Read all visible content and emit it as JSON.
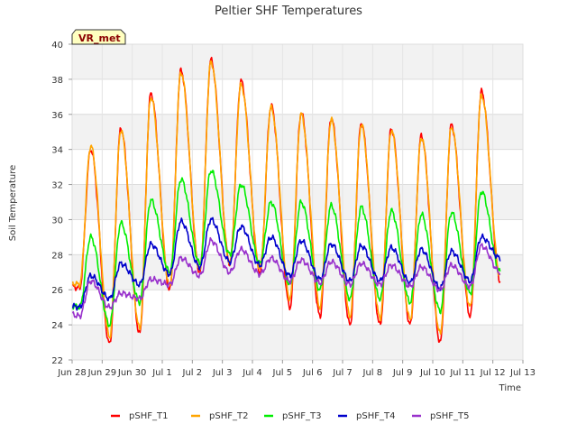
{
  "chart_data": {
    "type": "line",
    "title": "Peltier SHF Temperatures",
    "badge": "VR_met",
    "xlabel": "Time",
    "ylabel": "Soil Temperature",
    "ylim": [
      22,
      40
    ],
    "yticks": [
      22,
      24,
      26,
      28,
      30,
      32,
      34,
      36,
      38,
      40
    ],
    "xlim_days": [
      0,
      15
    ],
    "xticks": [
      {
        "day": 0,
        "label": "Jun 28"
      },
      {
        "day": 1,
        "label": "Jun 29"
      },
      {
        "day": 2,
        "label": "Jun 30"
      },
      {
        "day": 3,
        "label": "Jul 1"
      },
      {
        "day": 4,
        "label": "Jul 2"
      },
      {
        "day": 5,
        "label": "Jul 3"
      },
      {
        "day": 6,
        "label": "Jul 4"
      },
      {
        "day": 7,
        "label": "Jul 5"
      },
      {
        "day": 8,
        "label": "Jul 6"
      },
      {
        "day": 9,
        "label": "Jul 7"
      },
      {
        "day": 10,
        "label": "Jul 8"
      },
      {
        "day": 11,
        "label": "Jul 9"
      },
      {
        "day": 12,
        "label": "Jul 10"
      },
      {
        "day": 13,
        "label": "Jul 11"
      },
      {
        "day": 14,
        "label": "Jul 12"
      },
      {
        "day": 15,
        "label": "Jul 13"
      }
    ],
    "grid": true,
    "legend": "bottom",
    "series": [
      {
        "name": "pSHF_T1",
        "color": "#ff0000",
        "mins": [
          26.1,
          22.9,
          23.5,
          26.0,
          27.0,
          27.5,
          27.0,
          25.0,
          24.5,
          24.0,
          24.0,
          24.0,
          23.0,
          24.5,
          26.5
        ],
        "maxs": [
          34.0,
          35.2,
          37.2,
          38.5,
          39.1,
          37.9,
          36.5,
          36.1,
          35.8,
          35.5,
          35.2,
          34.8,
          35.4,
          37.3,
          29.5
        ]
      },
      {
        "name": "pSHF_T2",
        "color": "#ffa500",
        "mins": [
          26.3,
          23.3,
          23.8,
          26.2,
          27.1,
          27.5,
          27.2,
          25.5,
          25.0,
          24.5,
          24.4,
          24.3,
          23.5,
          25.0,
          26.8
        ],
        "maxs": [
          34.2,
          35.1,
          37.0,
          38.4,
          39.0,
          37.7,
          36.4,
          36.0,
          35.7,
          35.4,
          35.1,
          34.7,
          35.3,
          37.1,
          29.8
        ]
      },
      {
        "name": "pSHF_T3",
        "color": "#00ee00",
        "mins": [
          25.0,
          24.0,
          25.3,
          27.0,
          27.5,
          28.0,
          27.5,
          26.3,
          26.0,
          25.5,
          25.5,
          25.3,
          24.8,
          25.8,
          27.0
        ],
        "maxs": [
          29.0,
          29.8,
          31.1,
          32.3,
          32.8,
          32.0,
          31.0,
          31.0,
          30.8,
          30.7,
          30.5,
          30.3,
          30.4,
          31.6,
          29.0
        ]
      },
      {
        "name": "pSHF_T4",
        "color": "#0000cc",
        "mins": [
          25.0,
          25.5,
          26.3,
          26.9,
          27.3,
          27.6,
          27.4,
          26.8,
          26.6,
          26.5,
          26.5,
          26.4,
          26.1,
          26.5,
          27.8
        ],
        "maxs": [
          26.8,
          27.5,
          28.6,
          29.9,
          30.0,
          29.6,
          29.0,
          28.8,
          28.6,
          28.5,
          28.4,
          28.3,
          28.2,
          29.0,
          28.2
        ]
      },
      {
        "name": "pSHF_T5",
        "color": "#9932cc",
        "mins": [
          24.5,
          25.0,
          25.5,
          26.3,
          26.8,
          27.0,
          26.9,
          26.5,
          26.4,
          26.3,
          26.3,
          26.2,
          26.0,
          26.2,
          27.0
        ],
        "maxs": [
          26.5,
          25.8,
          26.6,
          27.8,
          28.8,
          28.3,
          27.8,
          27.7,
          27.6,
          27.5,
          27.4,
          27.3,
          27.4,
          28.5,
          27.3
        ]
      }
    ]
  }
}
